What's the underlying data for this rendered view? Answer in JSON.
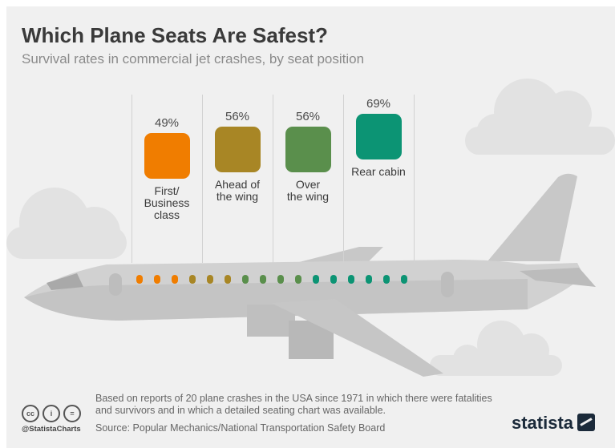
{
  "header": {
    "title": "Which Plane Seats Are Safest?",
    "subtitle": "Survival rates in commercial jet crashes, by seat position"
  },
  "chart_data": {
    "type": "bar",
    "title": "Which Plane Seats Are Safest?",
    "subtitle": "Survival rates in commercial jet crashes, by seat position",
    "categories": [
      "First/ Business class",
      "Ahead of the wing",
      "Over the wing",
      "Rear cabin"
    ],
    "category_lines": [
      [
        "First/",
        "Business",
        "class"
      ],
      [
        "Ahead of",
        "the wing"
      ],
      [
        "Over",
        "the wing"
      ],
      [
        "Rear cabin"
      ]
    ],
    "values": [
      49,
      56,
      56,
      69
    ],
    "value_labels": [
      "49%",
      "56%",
      "56%",
      "69%"
    ],
    "colors": [
      "#f07d00",
      "#a88625",
      "#5a8f4c",
      "#0c9474"
    ],
    "unit": "%"
  },
  "footer": {
    "note": "Based on reports of 20 plane crashes in the USA since 1971 in which there were fatalities and survivors and in which a detailed seating chart was available.",
    "source": "Source: Popular Mechanics/National Transportation Safety Board",
    "handle": "@StatistaCharts",
    "brand": "statista",
    "license_icons": [
      "creative-commons-icon",
      "attribution-icon",
      "no-derivatives-icon"
    ]
  }
}
